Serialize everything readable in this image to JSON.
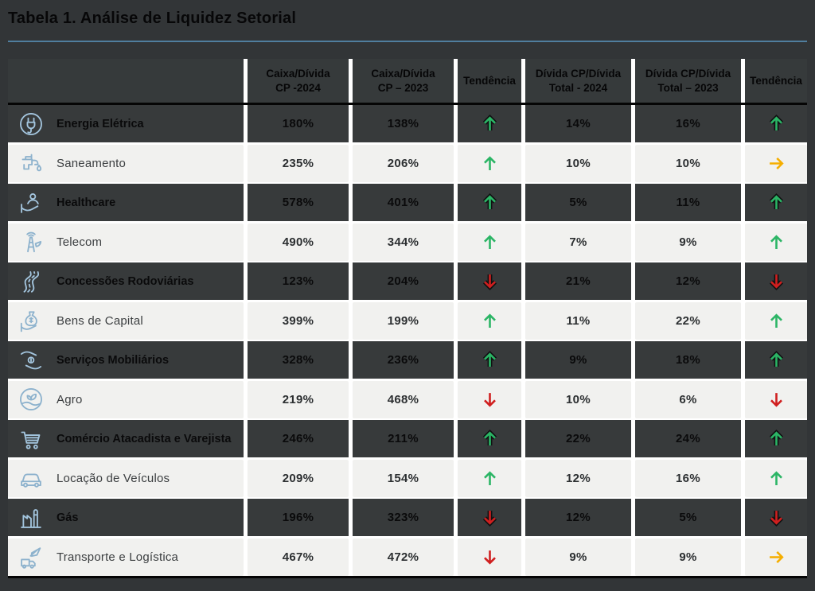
{
  "title": "Tabela 1. Análise de Liquidez Setorial",
  "colors": {
    "background": "#323537",
    "row_dark": "#373a3b",
    "row_light": "#f1f1ef",
    "accent_rule": "#507e9e",
    "icon_blue": "#9dc1da",
    "trend_up_green": "#2bb565",
    "trend_down_red": "#d01f1f",
    "trend_flat_yellow": "#f5ae00"
  },
  "table": {
    "columns": [
      {
        "label": ""
      },
      {
        "label": "Caixa/Dívida\nCP -2024"
      },
      {
        "label": "Caixa/Dívida\nCP – 2023"
      },
      {
        "label": "Tendência"
      },
      {
        "label": "Dívida CP/Dívida\nTotal - 2024"
      },
      {
        "label": "Dívida CP/Dívida\nTotal – 2023"
      },
      {
        "label": "Tendência"
      }
    ],
    "rows": [
      {
        "sector": "Energia Elétrica",
        "icon": "electric-plug",
        "caixa_2024": "180%",
        "caixa_2023": "138%",
        "trend_caixa": "up",
        "divida_2024": "14%",
        "divida_2023": "16%",
        "trend_divida": "up"
      },
      {
        "sector": "Saneamento",
        "icon": "water-faucet",
        "caixa_2024": "235%",
        "caixa_2023": "206%",
        "trend_caixa": "up",
        "divida_2024": "10%",
        "divida_2023": "10%",
        "trend_divida": "right"
      },
      {
        "sector": "Healthcare",
        "icon": "healthcare-hand",
        "caixa_2024": "578%",
        "caixa_2023": "401%",
        "trend_caixa": "up",
        "divida_2024": "5%",
        "divida_2023": "11%",
        "trend_divida": "up"
      },
      {
        "sector": "Telecom",
        "icon": "antenna-tower",
        "caixa_2024": "490%",
        "caixa_2023": "344%",
        "trend_caixa": "up",
        "divida_2024": "7%",
        "divida_2023": "9%",
        "trend_divida": "up"
      },
      {
        "sector": "Concessões Rodoviárias",
        "icon": "winding-road",
        "caixa_2024": "123%",
        "caixa_2023": "204%",
        "trend_caixa": "down",
        "divida_2024": "21%",
        "divida_2023": "12%",
        "trend_divida": "down"
      },
      {
        "sector": "Bens de Capital",
        "icon": "money-bag-hand",
        "caixa_2024": "399%",
        "caixa_2023": "199%",
        "trend_caixa": "up",
        "divida_2024": "11%",
        "divida_2023": "22%",
        "trend_divida": "up"
      },
      {
        "sector": "Serviços Mobiliários",
        "icon": "hands-exchange",
        "caixa_2024": "328%",
        "caixa_2023": "236%",
        "trend_caixa": "up",
        "divida_2024": "9%",
        "divida_2023": "18%",
        "trend_divida": "up"
      },
      {
        "sector": "Agro",
        "icon": "agro-field",
        "caixa_2024": "219%",
        "caixa_2023": "468%",
        "trend_caixa": "down",
        "divida_2024": "10%",
        "divida_2023": "6%",
        "trend_divida": "down"
      },
      {
        "sector": "Comércio Atacadista e Varejista",
        "icon": "shopping-cart",
        "caixa_2024": "246%",
        "caixa_2023": "211%",
        "trend_caixa": "up",
        "divida_2024": "22%",
        "divida_2023": "24%",
        "trend_divida": "up"
      },
      {
        "sector": "Locação de Veículos",
        "icon": "car",
        "caixa_2024": "209%",
        "caixa_2023": "154%",
        "trend_caixa": "up",
        "divida_2024": "12%",
        "divida_2023": "16%",
        "trend_divida": "up"
      },
      {
        "sector": "Gás",
        "icon": "gas-plant",
        "caixa_2024": "196%",
        "caixa_2023": "323%",
        "trend_caixa": "down",
        "divida_2024": "12%",
        "divida_2023": "5%",
        "trend_divida": "down"
      },
      {
        "sector": "Transporte e Logística",
        "icon": "plane-truck",
        "caixa_2024": "467%",
        "caixa_2023": "472%",
        "trend_caixa": "down",
        "divida_2024": "9%",
        "divida_2023": "9%",
        "trend_divida": "right"
      }
    ]
  }
}
